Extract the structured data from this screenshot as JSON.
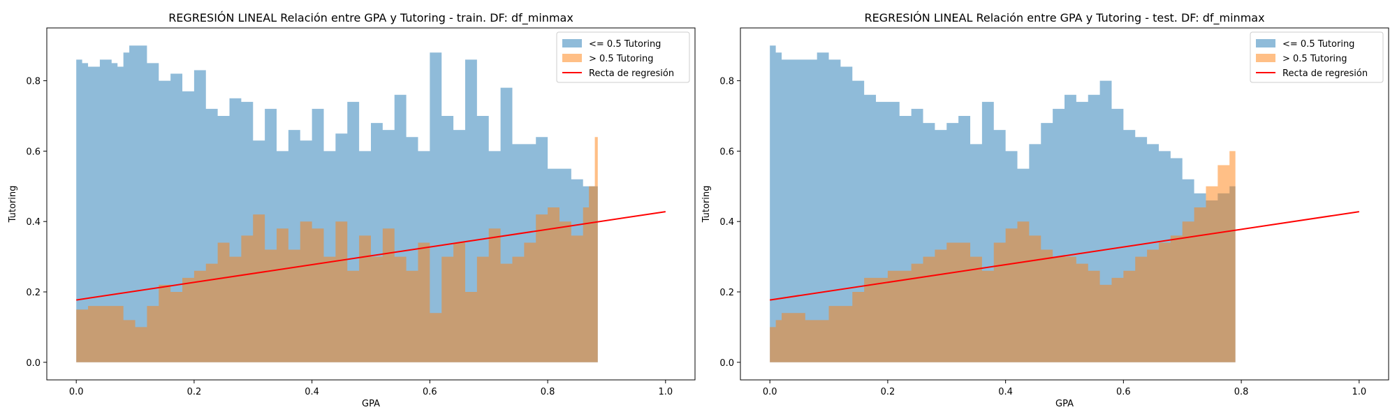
{
  "colors": {
    "low": "#1f77b4",
    "high": "#ff7f0e",
    "regression": "#ff0000"
  },
  "chart_data": [
    {
      "type": "area",
      "title": "REGRESIÓN LINEAL Relación entre GPA y Tutoring - train. DF: df_minmax",
      "xlabel": "GPA",
      "ylabel": "Tutoring",
      "xlim": [
        -0.05,
        1.05
      ],
      "ylim": [
        -0.05,
        0.95
      ],
      "xticks": [
        "0.0",
        "0.2",
        "0.4",
        "0.6",
        "0.8",
        "1.0"
      ],
      "yticks": [
        "0.0",
        "0.2",
        "0.4",
        "0.6",
        "0.8"
      ],
      "legend_position": "top-right",
      "legend": [
        "<= 0.5 Tutoring",
        "> 0.5 Tutoring",
        "Recta de regresión"
      ],
      "series": [
        {
          "name": "<= 0.5 Tutoring",
          "x": [
            0.0,
            0.01,
            0.02,
            0.03,
            0.04,
            0.05,
            0.06,
            0.07,
            0.08,
            0.09,
            0.1,
            0.12,
            0.14,
            0.16,
            0.18,
            0.2,
            0.22,
            0.24,
            0.26,
            0.28,
            0.3,
            0.32,
            0.34,
            0.36,
            0.38,
            0.4,
            0.42,
            0.44,
            0.46,
            0.48,
            0.5,
            0.52,
            0.54,
            0.56,
            0.58,
            0.6,
            0.62,
            0.64,
            0.66,
            0.68,
            0.7,
            0.72,
            0.74,
            0.76,
            0.78,
            0.8,
            0.82,
            0.84,
            0.86,
            0.88,
            0.885
          ],
          "values": [
            0.86,
            0.85,
            0.84,
            0.84,
            0.86,
            0.86,
            0.85,
            0.84,
            0.88,
            0.9,
            0.9,
            0.85,
            0.8,
            0.82,
            0.77,
            0.83,
            0.72,
            0.7,
            0.75,
            0.74,
            0.63,
            0.72,
            0.6,
            0.66,
            0.63,
            0.72,
            0.6,
            0.65,
            0.74,
            0.6,
            0.68,
            0.66,
            0.76,
            0.64,
            0.6,
            0.88,
            0.7,
            0.66,
            0.86,
            0.7,
            0.6,
            0.78,
            0.62,
            0.62,
            0.64,
            0.55,
            0.55,
            0.52,
            0.5,
            0.5,
            0.4
          ]
        },
        {
          "name": "> 0.5 Tutoring",
          "x": [
            0.0,
            0.02,
            0.04,
            0.06,
            0.08,
            0.1,
            0.12,
            0.14,
            0.16,
            0.18,
            0.2,
            0.22,
            0.24,
            0.26,
            0.28,
            0.3,
            0.32,
            0.34,
            0.36,
            0.38,
            0.4,
            0.42,
            0.44,
            0.46,
            0.48,
            0.5,
            0.52,
            0.54,
            0.56,
            0.58,
            0.6,
            0.62,
            0.64,
            0.66,
            0.68,
            0.7,
            0.72,
            0.74,
            0.76,
            0.78,
            0.8,
            0.82,
            0.84,
            0.86,
            0.87,
            0.88,
            0.885
          ],
          "values": [
            0.15,
            0.16,
            0.16,
            0.16,
            0.12,
            0.1,
            0.16,
            0.22,
            0.2,
            0.24,
            0.26,
            0.28,
            0.34,
            0.3,
            0.36,
            0.42,
            0.32,
            0.38,
            0.32,
            0.4,
            0.38,
            0.3,
            0.4,
            0.26,
            0.36,
            0.3,
            0.38,
            0.3,
            0.26,
            0.34,
            0.14,
            0.3,
            0.34,
            0.2,
            0.3,
            0.38,
            0.28,
            0.3,
            0.34,
            0.42,
            0.44,
            0.4,
            0.36,
            0.44,
            0.5,
            0.64,
            0.35
          ]
        },
        {
          "name": "Recta de regresión",
          "type": "line",
          "x": [
            0.0,
            1.0
          ],
          "values": [
            0.177,
            0.428
          ]
        }
      ]
    },
    {
      "type": "area",
      "title": "REGRESIÓN LINEAL Relación entre GPA y Tutoring - test. DF: df_minmax",
      "xlabel": "GPA",
      "ylabel": "Tutoring",
      "xlim": [
        -0.05,
        1.05
      ],
      "ylim": [
        -0.05,
        0.95
      ],
      "xticks": [
        "0.0",
        "0.2",
        "0.4",
        "0.6",
        "0.8",
        "1.0"
      ],
      "yticks": [
        "0.0",
        "0.2",
        "0.4",
        "0.6",
        "0.8"
      ],
      "legend_position": "top-right",
      "legend": [
        "<= 0.5 Tutoring",
        "> 0.5 Tutoring",
        "Recta de regresión"
      ],
      "series": [
        {
          "name": "<= 0.5 Tutoring",
          "x": [
            0.0,
            0.01,
            0.02,
            0.04,
            0.06,
            0.08,
            0.1,
            0.12,
            0.14,
            0.16,
            0.18,
            0.2,
            0.22,
            0.24,
            0.26,
            0.28,
            0.3,
            0.32,
            0.34,
            0.36,
            0.38,
            0.4,
            0.42,
            0.44,
            0.46,
            0.48,
            0.5,
            0.52,
            0.54,
            0.56,
            0.58,
            0.6,
            0.62,
            0.64,
            0.66,
            0.68,
            0.7,
            0.72,
            0.74,
            0.76,
            0.78,
            0.79
          ],
          "values": [
            0.9,
            0.88,
            0.86,
            0.86,
            0.86,
            0.88,
            0.86,
            0.84,
            0.8,
            0.76,
            0.74,
            0.74,
            0.7,
            0.72,
            0.68,
            0.66,
            0.68,
            0.7,
            0.62,
            0.74,
            0.66,
            0.6,
            0.55,
            0.62,
            0.68,
            0.72,
            0.76,
            0.74,
            0.76,
            0.8,
            0.72,
            0.66,
            0.64,
            0.62,
            0.6,
            0.58,
            0.52,
            0.48,
            0.46,
            0.48,
            0.5,
            0.44
          ]
        },
        {
          "name": "> 0.5 Tutoring",
          "x": [
            0.0,
            0.01,
            0.02,
            0.04,
            0.06,
            0.08,
            0.1,
            0.12,
            0.14,
            0.16,
            0.18,
            0.2,
            0.22,
            0.24,
            0.26,
            0.28,
            0.3,
            0.32,
            0.34,
            0.36,
            0.38,
            0.4,
            0.42,
            0.44,
            0.46,
            0.48,
            0.5,
            0.52,
            0.54,
            0.56,
            0.58,
            0.6,
            0.62,
            0.64,
            0.66,
            0.68,
            0.7,
            0.72,
            0.74,
            0.76,
            0.78,
            0.79
          ],
          "values": [
            0.1,
            0.12,
            0.14,
            0.14,
            0.12,
            0.12,
            0.16,
            0.16,
            0.2,
            0.24,
            0.24,
            0.26,
            0.26,
            0.28,
            0.3,
            0.32,
            0.34,
            0.34,
            0.3,
            0.26,
            0.34,
            0.38,
            0.4,
            0.36,
            0.32,
            0.3,
            0.3,
            0.28,
            0.26,
            0.22,
            0.24,
            0.26,
            0.3,
            0.32,
            0.34,
            0.36,
            0.4,
            0.44,
            0.5,
            0.56,
            0.6,
            0.55
          ]
        },
        {
          "name": "Recta de regresión",
          "type": "line",
          "x": [
            0.0,
            1.0
          ],
          "values": [
            0.177,
            0.428
          ]
        }
      ]
    }
  ]
}
